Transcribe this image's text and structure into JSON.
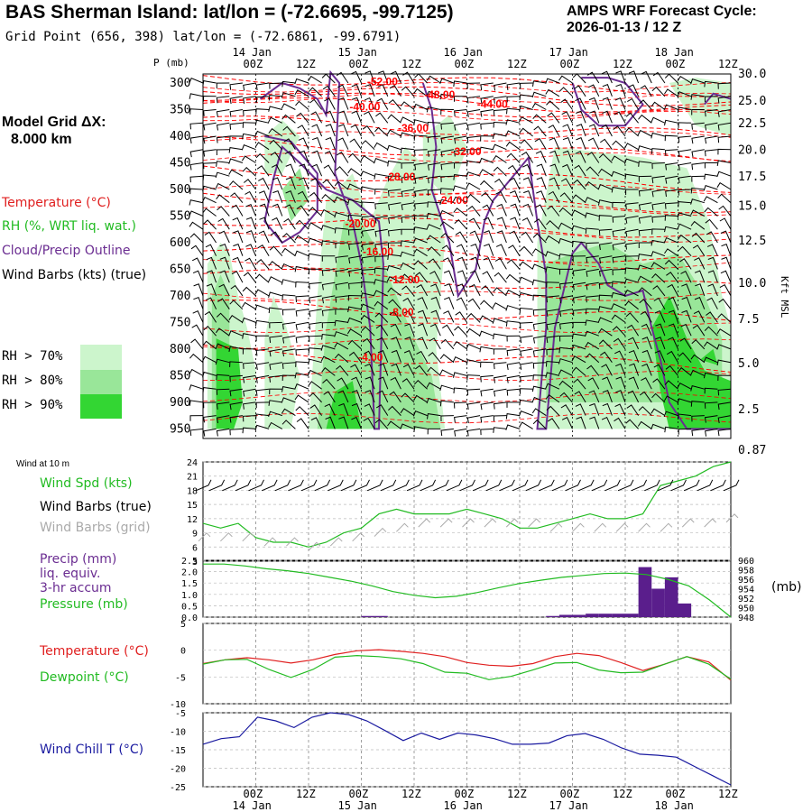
{
  "header": {
    "title": "BAS Sherman Island:  lat/lon = (-72.6695, -99.7125)",
    "subtitle": "Grid Point (656, 398) lat/lon = (-72.6861, -99.6791)",
    "cycle_line1": "AMPS WRF Forecast Cycle:",
    "cycle_line2": "2026-01-13 / 12  Z",
    "grid_label": "Model Grid ΔX:",
    "grid_value": "8.000 km"
  },
  "legend": {
    "temperature": "Temperature (°C)",
    "rh": "RH (%, WRT liq. wat.)",
    "cloud": "Cloud/Precip Outline",
    "wind_barbs": "Wind Barbs (kts) (true)",
    "rh70": "RH > 70%",
    "rh80": "RH > 80%",
    "rh90": "RH > 90%",
    "wind10m": "Wind at 10 m",
    "wind_spd": "Wind Spd (kts)",
    "wind_barbs_true": "Wind Barbs (true)",
    "wind_barbs_grid": "Wind Barbs (grid)",
    "precip1": "Precip (mm)",
    "precip2": "liq. equiv.",
    "precip3": "3-hr accum",
    "pressure": "Pressure (mb)",
    "temp2": "Temperature (°C)",
    "dewpoint": "Dewpoint (°C)",
    "windchill": "Wind Chill T (°C)",
    "pressure_unit": "(mb)",
    "height_unit": "Kft MSL"
  },
  "colors": {
    "temperature": "#ff0000",
    "rh_text": "#22bb22",
    "cloud": "#6a2c91",
    "rh70": "#ccf5cc",
    "rh80": "#99e699",
    "rh90": "#33d633",
    "precip": "#5a1e8c",
    "windchill": "#1a1aa0",
    "grid_barbs": "#aaaaaa"
  },
  "chart_data": {
    "type": "line",
    "time_labels_top": [
      "14 Jan",
      "15 Jan",
      "16 Jan",
      "17 Jan",
      "18 Jan"
    ],
    "hour_labels": [
      "00Z",
      "12Z",
      "00Z",
      "12Z",
      "00Z",
      "12Z",
      "00Z",
      "12Z",
      "00Z",
      "12Z"
    ],
    "hour_values": [
      12,
      24,
      36,
      48,
      60,
      72,
      84,
      96,
      108,
      120
    ],
    "x_range": [
      0,
      120
    ],
    "x_step": 3,
    "cross_section": {
      "ylabel": "P (mb)",
      "pressure_ticks": [
        "300",
        "350",
        "400",
        "450",
        "500",
        "550",
        "600",
        "650",
        "700",
        "750",
        "800",
        "850",
        "900",
        "950"
      ],
      "pressure_values": [
        300,
        350,
        400,
        450,
        500,
        550,
        600,
        650,
        700,
        750,
        800,
        850,
        900,
        950
      ],
      "height_ticks": [
        "30.0",
        "25.0",
        "22.5",
        "20.0",
        "17.5",
        "15.0",
        "12.5",
        "10.0",
        "7.5",
        "5.0",
        "2.5",
        "0.87"
      ],
      "height_at_pressure": [
        283,
        334,
        376,
        426,
        476,
        531,
        597,
        676,
        744,
        827,
        914,
        990
      ],
      "isotherm_labels": [
        {
          "text": "-52.00",
          "hour": 41,
          "p": 296
        },
        {
          "text": "-48.00",
          "hour": 54,
          "p": 320
        },
        {
          "text": "-44.00",
          "hour": 66,
          "p": 338
        },
        {
          "text": "-40.00",
          "hour": 37,
          "p": 343
        },
        {
          "text": "-36.00",
          "hour": 48,
          "p": 383
        },
        {
          "text": "-32.00",
          "hour": 60,
          "p": 427
        },
        {
          "text": "-28.00",
          "hour": 45,
          "p": 475
        },
        {
          "text": "-24.00",
          "hour": 57,
          "p": 519
        },
        {
          "text": "-20.00",
          "hour": 36,
          "p": 563
        },
        {
          "text": "-16.00",
          "hour": 40,
          "p": 615
        },
        {
          "text": "-12.00",
          "hour": 46,
          "p": 668
        },
        {
          "text": "-8.00",
          "hour": 46,
          "p": 729
        },
        {
          "text": "-4.00",
          "hour": 39,
          "p": 814
        }
      ]
    },
    "wind_panel": {
      "yticks": [
        "24",
        "21",
        "18",
        "15",
        "12",
        "9",
        "6",
        "3"
      ],
      "ylim": [
        3,
        24
      ],
      "wind_speed": [
        11,
        10,
        11,
        8,
        7,
        7,
        6,
        7,
        9,
        10,
        13,
        14,
        13,
        13,
        13,
        14,
        13,
        12,
        10,
        10,
        11,
        12,
        13,
        12,
        12,
        13,
        19,
        20,
        21,
        23,
        24
      ],
      "grid_barbs_speed": [
        8,
        8,
        8,
        7,
        7,
        6,
        7,
        8,
        9,
        10,
        11,
        11,
        11,
        11,
        11,
        11,
        10,
        10,
        10,
        10,
        10,
        10,
        11,
        11,
        12
      ]
    },
    "precip_panel": {
      "yticks_left": [
        "2.5",
        "2.0",
        "1.5",
        "1.0",
        "0.5",
        "0.0"
      ],
      "ylim_precip": [
        0,
        2.5
      ],
      "yticks_right": [
        "960",
        "958",
        "956",
        "954",
        "952",
        "950",
        "948"
      ],
      "ylim_pressure": [
        948,
        960
      ],
      "precip": [
        0,
        0,
        0,
        0,
        0,
        0,
        0,
        0,
        0,
        0,
        0,
        0,
        0.05,
        0.05,
        0,
        0,
        0,
        0,
        0,
        0,
        0,
        0,
        0,
        0,
        0,
        0,
        0.05,
        0.1,
        0.1,
        0.15,
        0.15,
        0.15,
        0.15,
        2.2,
        1.25,
        1.75,
        0.6,
        0,
        0,
        0
      ],
      "pressure": [
        959.2,
        959.2,
        958.8,
        958.2,
        957.8,
        957.2,
        956.4,
        955.6,
        954.6,
        953.4,
        952.6,
        952.1,
        952.4,
        953.2,
        954.2,
        955.1,
        955.8,
        956.4,
        956.8,
        957.2,
        957.3,
        957.0,
        956.0,
        954.6,
        951.6,
        948.0
      ]
    },
    "temp_panel": {
      "yticks": [
        "5",
        "0",
        "-5",
        "-10"
      ],
      "ylim": [
        -10,
        5
      ],
      "temperature": [
        -2.5,
        -1.8,
        -1.4,
        -1.8,
        -2.4,
        -1.8,
        -0.8,
        -0.1,
        0.1,
        -0.2,
        -0.6,
        -1.2,
        -2.3,
        -2.8,
        -3.0,
        -2.5,
        -1.2,
        -0.6,
        -1.0,
        -2.3,
        -3.8,
        -2.6,
        -1.2,
        -2.2,
        -5.6
      ],
      "dewpoint": [
        -2.6,
        -1.8,
        -1.7,
        -3.6,
        -5.1,
        -3.6,
        -1.3,
        -1.0,
        -1.2,
        -1.6,
        -2.5,
        -4.1,
        -4.3,
        -5.5,
        -4.9,
        -3.7,
        -2.4,
        -2.3,
        -3.7,
        -4.2,
        -4.1,
        -2.6,
        -1.2,
        -2.6,
        -5.4
      ]
    },
    "windchill_panel": {
      "yticks": [
        "-5",
        "-10",
        "-15",
        "-20",
        "-25"
      ],
      "ylim": [
        -25,
        -5
      ],
      "wind_chill": [
        -13.5,
        -12.0,
        -11.5,
        -6.2,
        -7.2,
        -9.0,
        -6.2,
        -5.0,
        -5.5,
        -7.2,
        -9.8,
        -12.5,
        -10.5,
        -12.2,
        -10.5,
        -11.0,
        -12.0,
        -13.5,
        -13.5,
        -13.2,
        -11.2,
        -10.6,
        -12.2,
        -14.5,
        -16.2,
        -16.5,
        -17.0,
        -19.5,
        -22.0,
        -24.5
      ]
    }
  }
}
